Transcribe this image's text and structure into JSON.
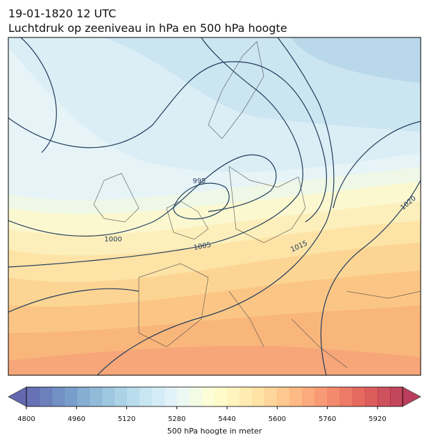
{
  "header": {
    "time": "19-01-1820 12 UTC",
    "title": "Luchtdruk op zeeniveau in hPa en 500 hPa hoogte"
  },
  "map": {
    "contour_labels": [
      "995",
      "1000",
      "1005",
      "1015",
      "1020"
    ]
  },
  "colorbar": {
    "label": "500 hPa hoogte in meter",
    "lim": [
      4800,
      6000
    ],
    "ticks": [
      4800,
      4960,
      5120,
      5280,
      5440,
      5600,
      5760,
      5920
    ],
    "colormap": "RdYlBu_r",
    "extend": "both"
  }
}
